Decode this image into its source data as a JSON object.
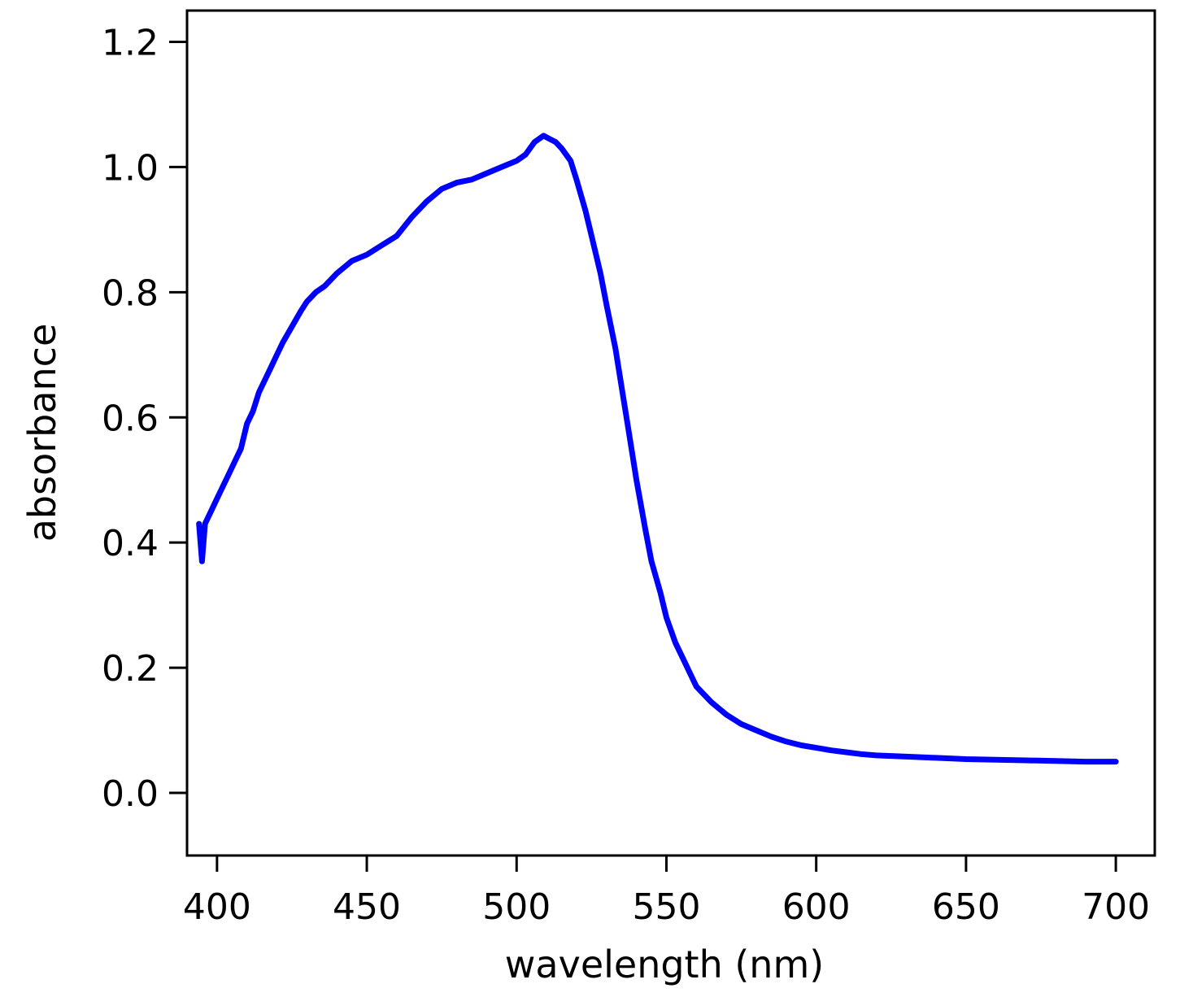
{
  "chart_data": {
    "type": "line",
    "xlabel": "wavelength (nm)",
    "ylabel": "absorbance",
    "xlim": [
      390,
      713
    ],
    "ylim": [
      -0.1,
      1.25
    ],
    "x_ticks": [
      400,
      450,
      500,
      550,
      600,
      650,
      700
    ],
    "x_tick_labels": [
      "400",
      "450",
      "500",
      "550",
      "600",
      "650",
      "700"
    ],
    "y_ticks": [
      0.0,
      0.2,
      0.4,
      0.6,
      0.8,
      1.0,
      1.2
    ],
    "y_tick_labels": [
      "0.0",
      "0.2",
      "0.4",
      "0.6",
      "0.8",
      "1.0",
      "1.2"
    ],
    "grid": false,
    "line_color": "#0000ff",
    "series": [
      {
        "x": [
          394,
          395,
          396,
          398,
          400,
          402,
          404,
          406,
          408,
          410,
          412,
          414,
          416,
          418,
          420,
          422,
          425,
          428,
          430,
          433,
          436,
          440,
          445,
          450,
          455,
          460,
          465,
          470,
          475,
          480,
          485,
          490,
          495,
          500,
          503,
          506,
          509,
          511,
          513,
          515,
          518,
          520,
          523,
          525,
          528,
          530,
          533,
          535,
          538,
          540,
          543,
          545,
          548,
          550,
          553,
          555,
          558,
          560,
          565,
          570,
          575,
          580,
          585,
          590,
          595,
          600,
          605,
          610,
          615,
          620,
          630,
          640,
          650,
          660,
          670,
          680,
          690,
          700
        ],
        "y": [
          0.43,
          0.37,
          0.43,
          0.45,
          0.47,
          0.49,
          0.51,
          0.53,
          0.55,
          0.59,
          0.61,
          0.64,
          0.66,
          0.68,
          0.7,
          0.72,
          0.745,
          0.77,
          0.785,
          0.8,
          0.81,
          0.83,
          0.85,
          0.86,
          0.875,
          0.89,
          0.92,
          0.945,
          0.965,
          0.975,
          0.98,
          0.99,
          1.0,
          1.01,
          1.02,
          1.04,
          1.05,
          1.045,
          1.04,
          1.03,
          1.01,
          0.98,
          0.93,
          0.89,
          0.83,
          0.78,
          0.71,
          0.65,
          0.56,
          0.5,
          0.42,
          0.37,
          0.32,
          0.28,
          0.24,
          0.22,
          0.19,
          0.17,
          0.145,
          0.125,
          0.11,
          0.1,
          0.09,
          0.082,
          0.076,
          0.072,
          0.068,
          0.065,
          0.062,
          0.06,
          0.058,
          0.056,
          0.054,
          0.053,
          0.052,
          0.051,
          0.05,
          0.05
        ]
      }
    ]
  }
}
